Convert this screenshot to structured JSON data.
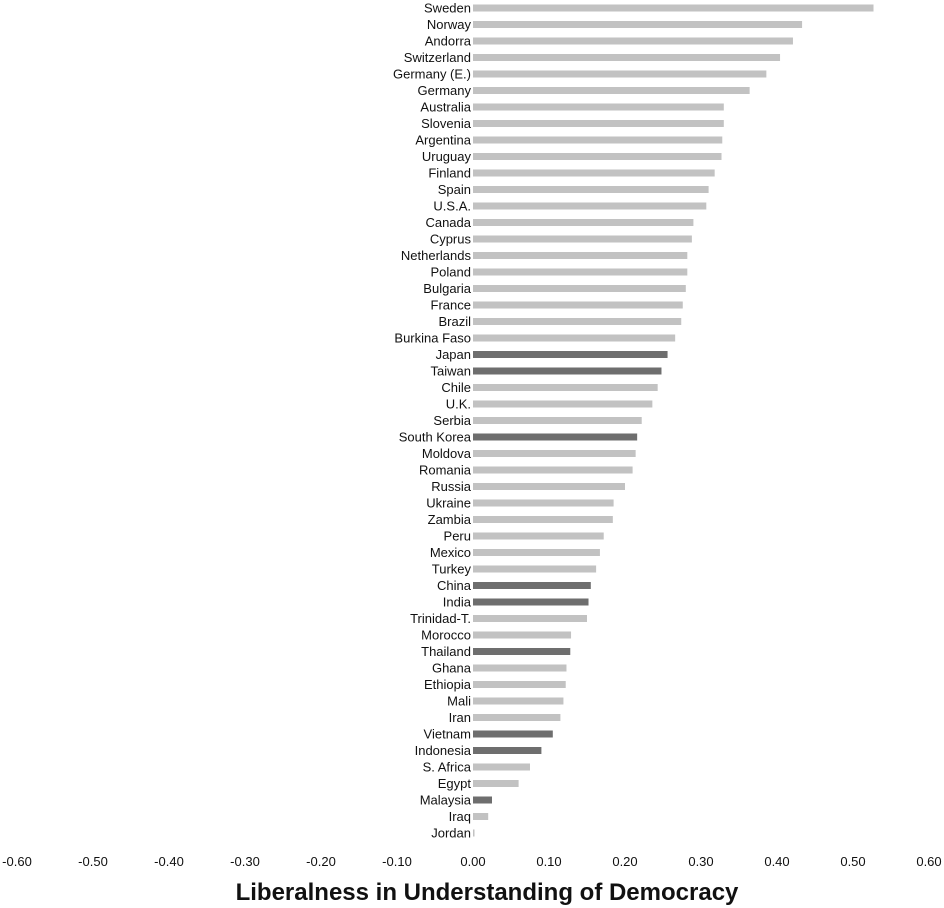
{
  "chart_data": {
    "type": "bar",
    "orientation": "horizontal",
    "xlabel": "Liberalness in Understanding of Democracy",
    "xlim": [
      -0.6,
      0.6
    ],
    "xticks": [
      -0.6,
      -0.5,
      -0.4,
      -0.3,
      -0.2,
      -0.1,
      0.0,
      0.1,
      0.2,
      0.3,
      0.4,
      0.5,
      0.6
    ],
    "xtick_labels": [
      "-0.60",
      "-0.50",
      "-0.40",
      "-0.30",
      "-0.20",
      "-0.10",
      "0.00",
      "0.10",
      "0.20",
      "0.30",
      "0.40",
      "0.50",
      "0.60"
    ],
    "grid": false,
    "legend": "none",
    "colors": {
      "highlighted": "#6e6e6e",
      "default": "#c2c2c2"
    },
    "categories": [
      "Sweden",
      "Norway",
      "Andorra",
      "Switzerland",
      "Germany (E.)",
      "Germany",
      "Australia",
      "Slovenia",
      "Argentina",
      "Uruguay",
      "Finland",
      "Spain",
      "U.S.A.",
      "Canada",
      "Cyprus",
      "Netherlands",
      "Poland",
      "Bulgaria",
      "France",
      "Brazil",
      "Burkina Faso",
      "Japan",
      "Taiwan",
      "Chile",
      "U.K.",
      "Serbia",
      "South Korea",
      "Moldova",
      "Romania",
      "Russia",
      "Ukraine",
      "Zambia",
      "Peru",
      "Mexico",
      "Turkey",
      "China",
      "India",
      "Trinidad-T.",
      "Morocco",
      "Thailand",
      "Ghana",
      "Ethiopia",
      "Mali",
      "Iran",
      "Vietnam",
      "Indonesia",
      "S. Africa",
      "Egypt",
      "Malaysia",
      "Iraq",
      "Jordan"
    ],
    "values": [
      0.527,
      0.433,
      0.421,
      0.404,
      0.386,
      0.364,
      0.33,
      0.33,
      0.328,
      0.327,
      0.318,
      0.31,
      0.307,
      0.29,
      0.288,
      0.282,
      0.282,
      0.28,
      0.276,
      0.274,
      0.266,
      0.256,
      0.248,
      0.243,
      0.236,
      0.222,
      0.216,
      0.214,
      0.21,
      0.2,
      0.185,
      0.184,
      0.172,
      0.167,
      0.162,
      0.155,
      0.152,
      0.15,
      0.129,
      0.128,
      0.123,
      0.122,
      0.119,
      0.115,
      0.105,
      0.09,
      0.075,
      0.06,
      0.025,
      0.02,
      0.002
    ],
    "highlighted": [
      false,
      false,
      false,
      false,
      false,
      false,
      false,
      false,
      false,
      false,
      false,
      false,
      false,
      false,
      false,
      false,
      false,
      false,
      false,
      false,
      false,
      true,
      true,
      false,
      false,
      false,
      true,
      false,
      false,
      false,
      false,
      false,
      false,
      false,
      false,
      true,
      true,
      false,
      false,
      true,
      false,
      false,
      false,
      false,
      true,
      true,
      false,
      false,
      true,
      false,
      false
    ]
  }
}
